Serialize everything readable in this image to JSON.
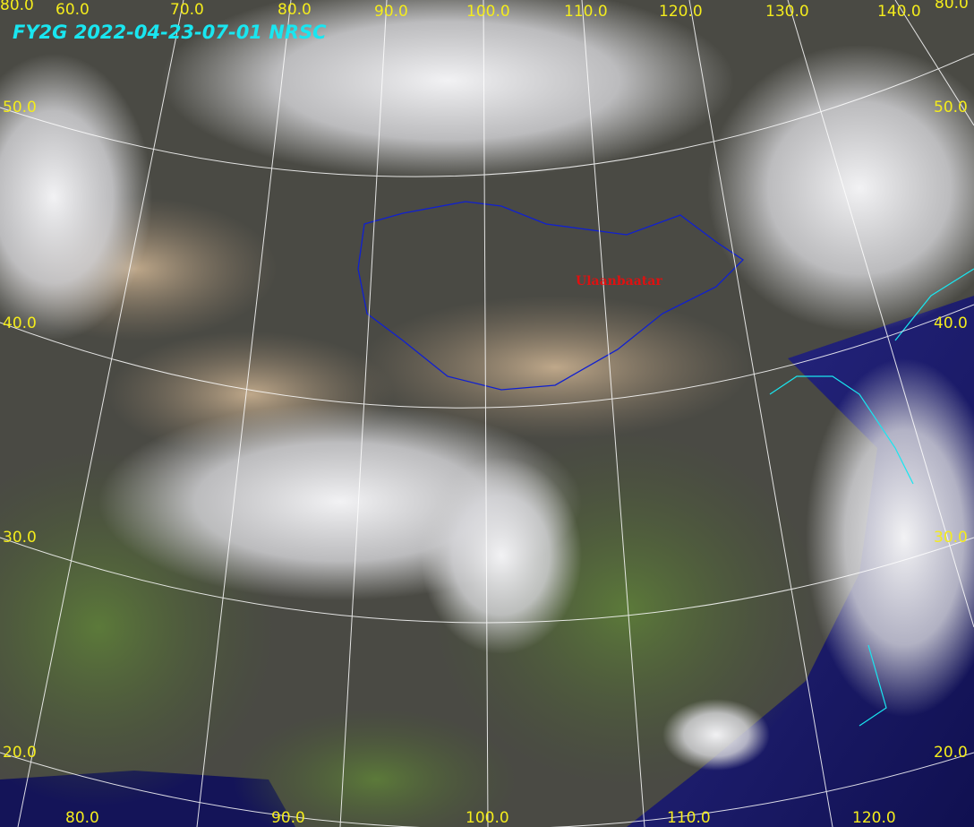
{
  "title": "FY2G  2022-04-23-07-01  NRSC",
  "city_label": "Ulaanbaatar",
  "top_labels": [
    "80.0",
    "60.0",
    "70.0",
    "80.0",
    "90.0",
    "100.0",
    "110.0",
    "120.0",
    "130.0",
    "140.0",
    "80.0"
  ],
  "left_labels": [
    "50.0",
    "40.0",
    "30.0",
    "20.0"
  ],
  "right_labels": [
    "50.0",
    "40.0",
    "30.0",
    "20.0"
  ],
  "bottom_labels": [
    "80.0",
    "90.0",
    "100.0",
    "110.0",
    "120.0"
  ],
  "colors": {
    "label": "#f4ec1c",
    "title": "#19e6f0",
    "coastline": "#19e6f0",
    "borders": "#1020d0",
    "city": "#e01010",
    "graticule": "#ffffff",
    "ocean": "#1a1a6a"
  }
}
